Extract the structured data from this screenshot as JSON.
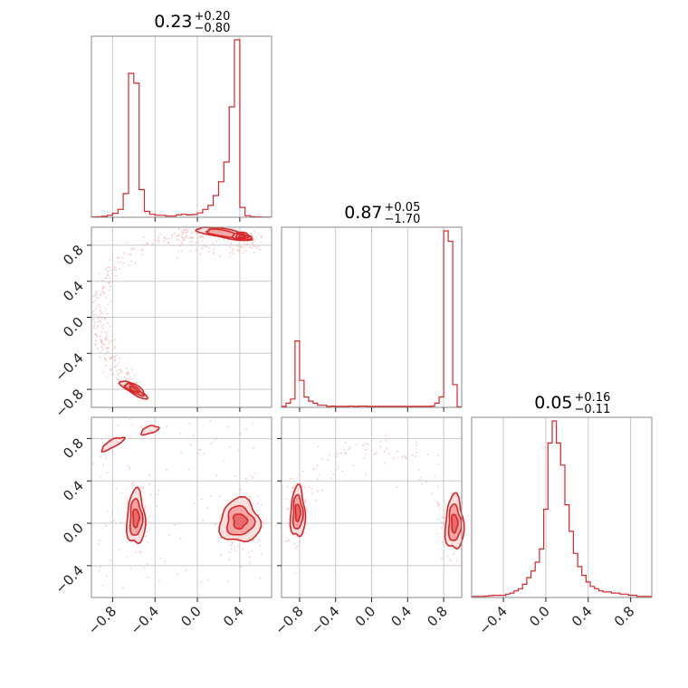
{
  "chart_data": {
    "type": "corner",
    "colors": {
      "line": "#d62728",
      "fill_light": "#fbe0e0",
      "fill_mid": "#f3a6a6",
      "fill_dark": "#e86a6a",
      "grid": "#c8c8c8",
      "frame": "#888888"
    },
    "parameters": [
      {
        "summary": {
          "median": "0.23",
          "plus": "+0.20",
          "minus": "−0.80"
        },
        "range": [
          -1.0,
          0.7
        ]
      },
      {
        "summary": {
          "median": "0.87",
          "plus": "+0.05",
          "minus": "−1.70"
        },
        "range": [
          -1.0,
          1.0
        ]
      },
      {
        "summary": {
          "median": "0.05",
          "plus": "+0.16",
          "minus": "−0.11"
        },
        "range": [
          -0.7,
          1.0
        ]
      }
    ],
    "tick_labels": {
      "p0": [
        "−0.8",
        "−0.4",
        "0.0",
        "0.4"
      ],
      "p1": [
        "−0.8",
        "−0.4",
        "0.0",
        "0.4",
        "0.8"
      ],
      "p2": [
        "−0.4",
        "0.0",
        "0.4",
        "0.8"
      ]
    },
    "tick_values": {
      "p0": [
        -0.8,
        -0.4,
        0.0,
        0.4
      ],
      "p1": [
        -0.8,
        -0.4,
        0.0,
        0.4,
        0.8
      ],
      "p2": [
        -0.4,
        0.0,
        0.4,
        0.8
      ]
    },
    "hist_p0": {
      "bin_start": -1.0,
      "bin_width": 0.05,
      "counts": [
        0.2,
        0.3,
        0.5,
        1,
        2,
        4,
        12,
        73,
        68,
        14,
        3,
        1.5,
        1,
        1,
        0.6,
        0.6,
        1.2,
        1.5,
        1.2,
        1.4,
        2.2,
        4,
        6,
        11,
        18,
        28,
        56,
        90,
        5,
        0.8,
        0.3,
        0.2,
        0.1,
        0.1
      ]
    },
    "hist_p1": {
      "bin_start": -1.0,
      "bin_width": 0.05,
      "counts": [
        0.5,
        2,
        4,
        32,
        13,
        5,
        3,
        2,
        1,
        1,
        0.5,
        0.6,
        0.5,
        0.5,
        0.5,
        0.6,
        0.5,
        0.6,
        0.6,
        0.5,
        0.5,
        0.5,
        0.5,
        0.5,
        0.5,
        0.5,
        0.5,
        0.5,
        0.5,
        0.5,
        0.5,
        0.5,
        0.5,
        0.6,
        2,
        5,
        85,
        80,
        11,
        0.3
      ]
    },
    "hist_p2": {
      "bin_start": -0.7,
      "bin_width": 0.04,
      "counts": [
        0.5,
        0.5,
        0.5,
        0.6,
        0.8,
        1,
        1,
        1,
        1.5,
        2,
        3,
        4,
        6,
        9,
        12,
        16,
        22,
        40,
        70,
        80,
        70,
        60,
        42,
        30,
        20,
        14,
        10,
        7,
        5,
        4,
        3,
        2.5,
        2.5,
        2,
        2,
        1.5,
        1.5,
        1,
        1,
        0.5,
        0.5,
        0.5,
        0.5
      ]
    },
    "modes": {
      "p0": [
        -0.57,
        0.42
      ],
      "p1": [
        -0.82,
        0.9
      ],
      "p2": [
        0.05
      ]
    }
  }
}
